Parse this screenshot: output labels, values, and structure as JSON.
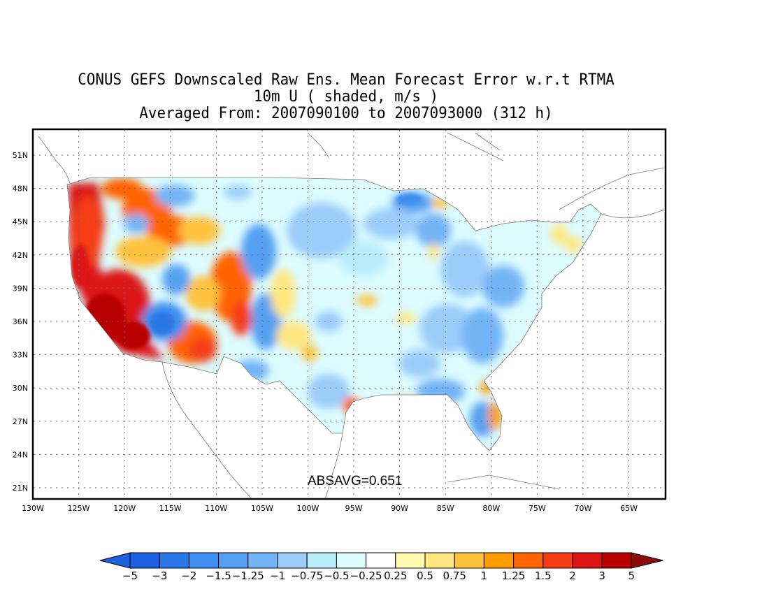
{
  "titles": {
    "line1": "CONUS GEFS Downscaled Raw Ens. Mean Forecast Error w.r.t RTMA",
    "line2": "10m U ( shaded, m/s )",
    "line3": "Averaged From: 2007090100 to 2007093000 (312 h)"
  },
  "annotation": "ABSAVG=0.651",
  "axes": {
    "lon_labels": [
      "130W",
      "125W",
      "120W",
      "115W",
      "110W",
      "105W",
      "100W",
      "95W",
      "90W",
      "85W",
      "80W",
      "75W",
      "70W",
      "65W"
    ],
    "lat_labels": [
      "51N",
      "48N",
      "45N",
      "42N",
      "39N",
      "36N",
      "33N",
      "30N",
      "27N",
      "24N",
      "21N"
    ]
  },
  "colorbar": {
    "labels": [
      "-5",
      "-3",
      "-2",
      "-1.5",
      "-1.25",
      "-1",
      "-0.75",
      "-0.5",
      "-0.25",
      "0.25",
      "0.5",
      "0.75",
      "1",
      "1.25",
      "1.5",
      "2",
      "3",
      "5"
    ],
    "colors": [
      "#1e60e0",
      "#2a78e8",
      "#3d8ef0",
      "#55a0f2",
      "#73b4f6",
      "#9bccfa",
      "#b8ecfa",
      "#dcfcff",
      "#ffffff",
      "#fffab0",
      "#ffe680",
      "#ffc23c",
      "#ff9c00",
      "#ff6400",
      "#f53c14",
      "#dc1414",
      "#b90000",
      "#8c0a0a"
    ]
  },
  "chart_data": {
    "type": "heatmap",
    "variable": "10m U",
    "units": "m/s",
    "lon_range": [
      -130,
      -61
    ],
    "lat_range": [
      19.8,
      53
    ],
    "grid": true,
    "regions": [
      {
        "area": "Pacific coast",
        "value_range": [
          2,
          5
        ]
      },
      {
        "area": "Intermountain West",
        "value_range": [
          -2,
          2
        ]
      },
      {
        "area": "Great Plains",
        "value_range": [
          -1,
          0.75
        ]
      },
      {
        "area": "Midwest / Great Lakes",
        "value_range": [
          -1.5,
          -0.25
        ]
      },
      {
        "area": "Southeast",
        "value_range": [
          -1.25,
          0.5
        ]
      },
      {
        "area": "Florida east coast",
        "value_range": [
          1,
          1.5
        ]
      },
      {
        "area": "Northeast",
        "value_range": [
          -0.75,
          0.75
        ]
      }
    ]
  }
}
